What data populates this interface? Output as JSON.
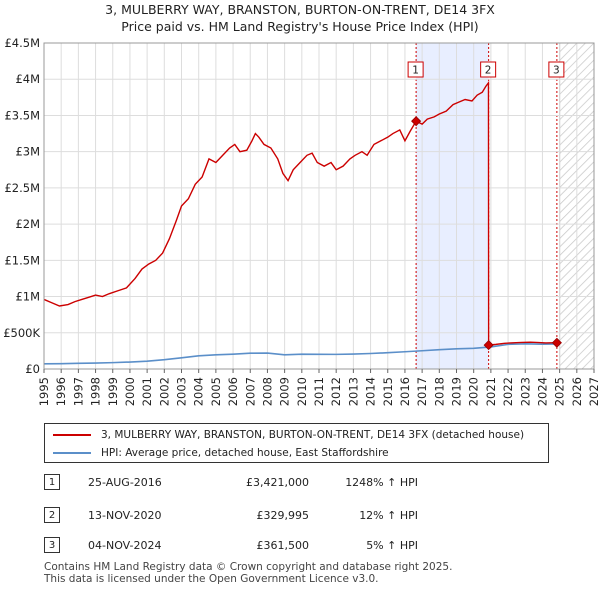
{
  "chart_data": {
    "type": "line",
    "title": "3, MULBERRY WAY, BRANSTON, BURTON-ON-TRENT, DE14 3FX",
    "subtitle": "Price paid vs. HM Land Registry's House Price Index (HPI)",
    "xlim": [
      1995,
      2027
    ],
    "ylim": [
      0,
      4500000
    ],
    "x_ticks": [
      "1995",
      "1996",
      "1997",
      "1998",
      "1999",
      "2000",
      "2001",
      "2002",
      "2003",
      "2004",
      "2005",
      "2006",
      "2007",
      "2008",
      "2009",
      "2010",
      "2011",
      "2012",
      "2013",
      "2014",
      "2015",
      "2016",
      "2017",
      "2018",
      "2019",
      "2020",
      "2021",
      "2022",
      "2023",
      "2024",
      "2025",
      "2026",
      "2027"
    ],
    "y_ticks": [
      {
        "value": 0,
        "label": "£0"
      },
      {
        "value": 500000,
        "label": "£500K"
      },
      {
        "value": 1000000,
        "label": "£1M"
      },
      {
        "value": 1500000,
        "label": "£1.5M"
      },
      {
        "value": 2000000,
        "label": "£2M"
      },
      {
        "value": 2500000,
        "label": "£2.5M"
      },
      {
        "value": 3000000,
        "label": "£3M"
      },
      {
        "value": 3500000,
        "label": "£3.5M"
      },
      {
        "value": 4000000,
        "label": "£4M"
      },
      {
        "value": 4500000,
        "label": "£4.5M"
      }
    ],
    "colors": {
      "property": "#cc0000",
      "hpi": "#5b8fc9",
      "grid": "#dddddd",
      "band": "#e8eeff",
      "future": "#cccccc"
    },
    "series": [
      {
        "name": "3, MULBERRY WAY, BRANSTON, BURTON-ON-TRENT, DE14 3FX (detached house)",
        "color": "#cc0000",
        "points": [
          [
            1995.0,
            960000
          ],
          [
            1995.4,
            920000
          ],
          [
            1995.9,
            870000
          ],
          [
            1996.4,
            890000
          ],
          [
            1996.8,
            930000
          ],
          [
            1997.2,
            960000
          ],
          [
            1997.6,
            990000
          ],
          [
            1998.0,
            1020000
          ],
          [
            1998.4,
            1000000
          ],
          [
            1998.8,
            1040000
          ],
          [
            1999.3,
            1080000
          ],
          [
            1999.8,
            1120000
          ],
          [
            2000.3,
            1250000
          ],
          [
            2000.7,
            1380000
          ],
          [
            2001.1,
            1450000
          ],
          [
            2001.5,
            1500000
          ],
          [
            2001.9,
            1600000
          ],
          [
            2002.3,
            1800000
          ],
          [
            2002.7,
            2050000
          ],
          [
            2003.0,
            2250000
          ],
          [
            2003.4,
            2350000
          ],
          [
            2003.8,
            2550000
          ],
          [
            2004.2,
            2650000
          ],
          [
            2004.6,
            2900000
          ],
          [
            2005.0,
            2850000
          ],
          [
            2005.4,
            2950000
          ],
          [
            2005.8,
            3050000
          ],
          [
            2006.1,
            3100000
          ],
          [
            2006.4,
            3000000
          ],
          [
            2006.8,
            3020000
          ],
          [
            2007.1,
            3150000
          ],
          [
            2007.3,
            3250000
          ],
          [
            2007.5,
            3200000
          ],
          [
            2007.8,
            3100000
          ],
          [
            2008.2,
            3050000
          ],
          [
            2008.6,
            2900000
          ],
          [
            2008.9,
            2700000
          ],
          [
            2009.2,
            2600000
          ],
          [
            2009.5,
            2750000
          ],
          [
            2009.9,
            2850000
          ],
          [
            2010.3,
            2950000
          ],
          [
            2010.6,
            2980000
          ],
          [
            2010.9,
            2850000
          ],
          [
            2011.3,
            2800000
          ],
          [
            2011.7,
            2850000
          ],
          [
            2012.0,
            2750000
          ],
          [
            2012.4,
            2800000
          ],
          [
            2012.8,
            2900000
          ],
          [
            2013.1,
            2950000
          ],
          [
            2013.5,
            3000000
          ],
          [
            2013.8,
            2950000
          ],
          [
            2014.2,
            3100000
          ],
          [
            2014.6,
            3150000
          ],
          [
            2015.0,
            3200000
          ],
          [
            2015.3,
            3250000
          ],
          [
            2015.7,
            3300000
          ],
          [
            2016.0,
            3150000
          ],
          [
            2016.3,
            3280000
          ],
          [
            2016.65,
            3421000
          ],
          [
            2017.0,
            3380000
          ],
          [
            2017.3,
            3450000
          ],
          [
            2017.7,
            3480000
          ],
          [
            2018.0,
            3520000
          ],
          [
            2018.4,
            3560000
          ],
          [
            2018.8,
            3650000
          ],
          [
            2019.1,
            3680000
          ],
          [
            2019.5,
            3720000
          ],
          [
            2019.9,
            3700000
          ],
          [
            2020.2,
            3780000
          ],
          [
            2020.5,
            3820000
          ],
          [
            2020.7,
            3900000
          ],
          [
            2020.86,
            3950000
          ],
          [
            2020.87,
            329995
          ],
          [
            2021.3,
            340000
          ],
          [
            2021.8,
            355000
          ],
          [
            2022.3,
            362000
          ],
          [
            2022.8,
            366000
          ],
          [
            2023.3,
            370000
          ],
          [
            2023.8,
            365000
          ],
          [
            2024.2,
            360000
          ],
          [
            2024.5,
            362000
          ],
          [
            2024.84,
            361500
          ]
        ]
      },
      {
        "name": "HPI: Average price, detached house, East Staffordshire",
        "color": "#5b8fc9",
        "points": [
          [
            1995.0,
            72000
          ],
          [
            1996.0,
            74000
          ],
          [
            1997.0,
            78000
          ],
          [
            1998.0,
            82000
          ],
          [
            1999.0,
            88000
          ],
          [
            2000.0,
            96000
          ],
          [
            2001.0,
            108000
          ],
          [
            2002.0,
            128000
          ],
          [
            2003.0,
            155000
          ],
          [
            2004.0,
            182000
          ],
          [
            2005.0,
            196000
          ],
          [
            2006.0,
            205000
          ],
          [
            2007.0,
            218000
          ],
          [
            2008.0,
            220000
          ],
          [
            2009.0,
            196000
          ],
          [
            2010.0,
            205000
          ],
          [
            2011.0,
            203000
          ],
          [
            2012.0,
            202000
          ],
          [
            2013.0,
            206000
          ],
          [
            2014.0,
            214000
          ],
          [
            2015.0,
            225000
          ],
          [
            2016.0,
            238000
          ],
          [
            2017.0,
            252000
          ],
          [
            2018.0,
            266000
          ],
          [
            2019.0,
            278000
          ],
          [
            2020.0,
            285000
          ],
          [
            2021.0,
            305000
          ],
          [
            2022.0,
            340000
          ],
          [
            2023.0,
            348000
          ],
          [
            2024.0,
            342000
          ],
          [
            2024.84,
            345000
          ]
        ]
      }
    ],
    "sale_markers": [
      {
        "id": "1",
        "x": 2016.65,
        "y": 3421000
      },
      {
        "id": "2",
        "x": 2020.87,
        "y": 329995
      },
      {
        "id": "3",
        "x": 2024.84,
        "y": 361500
      }
    ],
    "highlight_band": [
      2016.65,
      2020.87
    ],
    "future_start": 2025.0
  },
  "legend": {
    "property": "3, MULBERRY WAY, BRANSTON, BURTON-ON-TRENT, DE14 3FX (detached house)",
    "hpi": "HPI: Average price, detached house, East Staffordshire"
  },
  "sales": [
    {
      "id": "1",
      "date": "25-AUG-2016",
      "price": "£3,421,000",
      "pct": "1248% ↑ HPI"
    },
    {
      "id": "2",
      "date": "13-NOV-2020",
      "price": "£329,995",
      "pct": "12% ↑ HPI"
    },
    {
      "id": "3",
      "date": "04-NOV-2024",
      "price": "£361,500",
      "pct": "5% ↑ HPI"
    }
  ],
  "footer": {
    "line1": "Contains HM Land Registry data © Crown copyright and database right 2025.",
    "line2": "This data is licensed under the Open Government Licence v3.0."
  }
}
